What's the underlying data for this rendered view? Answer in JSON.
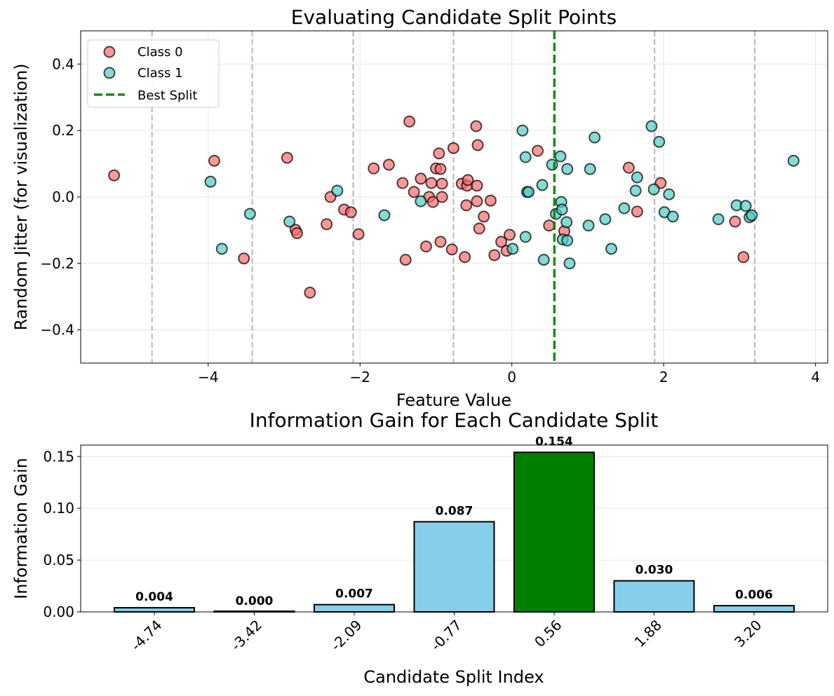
{
  "chart_data": [
    {
      "type": "scatter",
      "title": "Evaluating Candidate Split Points",
      "xlabel": "Feature Value",
      "ylabel": "Random Jitter (for visualization)",
      "xlim": [
        -5.68,
        4.16
      ],
      "ylim": [
        -0.5,
        0.5
      ],
      "xticks": [
        -4,
        -2,
        0,
        2,
        4
      ],
      "yticks": [
        -0.4,
        -0.2,
        0.0,
        0.2,
        0.4
      ],
      "xtick_labels": [
        "−4",
        "−2",
        "0",
        "2",
        "4"
      ],
      "ytick_labels": [
        "−0.4",
        "−0.2",
        "0.0",
        "0.2",
        "0.4"
      ],
      "grid": true,
      "legend_placement": "top-left",
      "candidate_splits": [
        -4.74,
        -3.42,
        -2.09,
        -0.77,
        0.56,
        1.88,
        3.2
      ],
      "best_split": 0.56,
      "best_split_label": "Best Split",
      "best_split_color": "#008000",
      "series": [
        {
          "name": "Class 0",
          "color": "#ff6b6b",
          "points": [
            [
              -5.24,
              0.065
            ],
            [
              -3.92,
              0.109
            ],
            [
              -3.53,
              -0.185
            ],
            [
              -2.96,
              0.118
            ],
            [
              -2.85,
              -0.099
            ],
            [
              -2.83,
              -0.109
            ],
            [
              -2.66,
              -0.288
            ],
            [
              -2.44,
              -0.082
            ],
            [
              -2.39,
              0.0
            ],
            [
              -2.21,
              -0.038
            ],
            [
              -2.12,
              -0.046
            ],
            [
              -2.02,
              -0.112
            ],
            [
              -1.82,
              0.086
            ],
            [
              -1.62,
              0.097
            ],
            [
              -1.44,
              0.042
            ],
            [
              -1.4,
              -0.189
            ],
            [
              -1.35,
              0.227
            ],
            [
              -1.29,
              0.015
            ],
            [
              -1.2,
              0.055
            ],
            [
              -1.13,
              -0.149
            ],
            [
              -1.09,
              0.0
            ],
            [
              -1.06,
              0.042
            ],
            [
              -1.04,
              -0.015
            ],
            [
              -1.0,
              0.086
            ],
            [
              -0.96,
              0.131
            ],
            [
              -0.94,
              0.084
            ],
            [
              -0.94,
              -0.135
            ],
            [
              -0.92,
              0.04
            ],
            [
              -0.92,
              0.0
            ],
            [
              -0.79,
              -0.158
            ],
            [
              -0.77,
              0.147
            ],
            [
              -0.66,
              0.04
            ],
            [
              -0.62,
              -0.181
            ],
            [
              -0.6,
              -0.025
            ],
            [
              -0.59,
              0.034
            ],
            [
              -0.58,
              0.051
            ],
            [
              -0.47,
              0.213
            ],
            [
              -0.46,
              0.034
            ],
            [
              -0.46,
              -0.013
            ],
            [
              -0.45,
              0.156
            ],
            [
              -0.43,
              -0.095
            ],
            [
              -0.37,
              -0.059
            ],
            [
              -0.28,
              -0.011
            ],
            [
              -0.23,
              -0.175
            ],
            [
              -0.14,
              -0.135
            ],
            [
              -0.07,
              -0.162
            ],
            [
              -0.03,
              -0.114
            ],
            [
              0.34,
              0.139
            ],
            [
              0.49,
              -0.086
            ],
            [
              0.69,
              -0.103
            ],
            [
              1.54,
              0.088
            ],
            [
              1.96,
              0.042
            ],
            [
              1.65,
              -0.044
            ],
            [
              2.94,
              -0.074
            ],
            [
              3.05,
              -0.181
            ]
          ]
        },
        {
          "name": "Class 1",
          "color": "#4ecdc4",
          "points": [
            [
              -3.97,
              0.046
            ],
            [
              -3.82,
              -0.156
            ],
            [
              -3.45,
              -0.051
            ],
            [
              -2.93,
              -0.074
            ],
            [
              -2.3,
              0.019
            ],
            [
              -1.68,
              -0.055
            ],
            [
              -1.2,
              -0.013
            ],
            [
              0.14,
              0.2
            ],
            [
              0.18,
              0.12
            ],
            [
              0.2,
              0.015
            ],
            [
              0.22,
              0.015
            ],
            [
              0.18,
              -0.12
            ],
            [
              0.01,
              -0.156
            ],
            [
              0.4,
              0.036
            ],
            [
              0.42,
              -0.189
            ],
            [
              0.53,
              0.097
            ],
            [
              0.58,
              -0.051
            ],
            [
              0.64,
              0.122
            ],
            [
              0.65,
              -0.015
            ],
            [
              0.66,
              -0.038
            ],
            [
              0.67,
              -0.128
            ],
            [
              0.73,
              -0.131
            ],
            [
              0.72,
              -0.076
            ],
            [
              0.73,
              0.084
            ],
            [
              0.76,
              -0.2
            ],
            [
              1.09,
              0.179
            ],
            [
              1.03,
              0.084
            ],
            [
              1.01,
              -0.086
            ],
            [
              1.23,
              -0.067
            ],
            [
              1.31,
              -0.156
            ],
            [
              1.48,
              -0.034
            ],
            [
              1.63,
              0.019
            ],
            [
              1.65,
              0.059
            ],
            [
              1.84,
              0.213
            ],
            [
              1.94,
              0.166
            ],
            [
              1.87,
              0.023
            ],
            [
              2.07,
              0.008
            ],
            [
              2.01,
              -0.046
            ],
            [
              2.12,
              -0.059
            ],
            [
              2.72,
              -0.067
            ],
            [
              2.96,
              -0.025
            ],
            [
              3.08,
              -0.027
            ],
            [
              3.13,
              -0.061
            ],
            [
              3.16,
              -0.055
            ],
            [
              3.71,
              0.109
            ]
          ]
        }
      ]
    },
    {
      "type": "bar",
      "title": "Information Gain for Each Candidate Split",
      "xlabel": "Candidate Split Index",
      "ylabel": "Information Gain",
      "categories": [
        "-4.74",
        "-3.42",
        "-2.09",
        "-0.77",
        "0.56",
        "1.88",
        "3.20"
      ],
      "values": [
        0.004,
        0.0,
        0.007,
        0.087,
        0.154,
        0.03,
        0.006
      ],
      "data_labels": [
        "0.004",
        "0.000",
        "0.007",
        "0.087",
        "0.154",
        "0.030",
        "0.006"
      ],
      "ylim": [
        0,
        0.161
      ],
      "yticks": [
        0.0,
        0.05,
        0.1,
        0.15
      ],
      "ytick_labels": [
        "0.00",
        "0.05",
        "0.10",
        "0.15"
      ],
      "grid": true,
      "bar_color": "#87ceeb",
      "best_bar_color": "#008000",
      "best_index": 4
    }
  ]
}
